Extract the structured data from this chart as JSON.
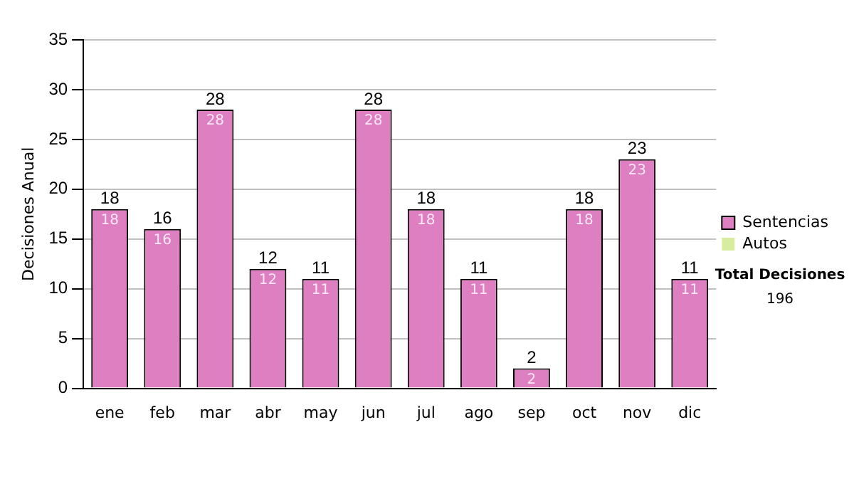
{
  "chart_data": {
    "type": "bar",
    "ylabel": "Decisiones Anual",
    "categories": [
      "ene",
      "feb",
      "mar",
      "abr",
      "may",
      "jun",
      "jul",
      "ago",
      "sep",
      "oct",
      "nov",
      "dic"
    ],
    "series": [
      {
        "name": "Sentencias",
        "color": "#dd7fc0",
        "values": [
          18,
          16,
          28,
          12,
          11,
          28,
          18,
          11,
          2,
          18,
          23,
          11
        ],
        "value_labels": [
          "18",
          "16",
          "28",
          "12",
          "11",
          "28",
          "18",
          "11",
          "2",
          "18",
          "23",
          "11"
        ]
      },
      {
        "name": "Autos",
        "color": "#d8eca0",
        "values": [
          0,
          0,
          0,
          0,
          0,
          0,
          0,
          0,
          0,
          0,
          0,
          0
        ]
      }
    ],
    "stacked": true,
    "totals": [
      "18",
      "16",
      "28",
      "12",
      "11",
      "28",
      "18",
      "11",
      "2",
      "18",
      "23",
      "11"
    ],
    "ylim": [
      0,
      35
    ],
    "yticks": [
      0,
      5,
      10,
      15,
      20,
      25,
      30,
      35
    ],
    "grid": "y",
    "legend": "right",
    "annotations": [
      "Total Decisiones",
      "196"
    ]
  }
}
